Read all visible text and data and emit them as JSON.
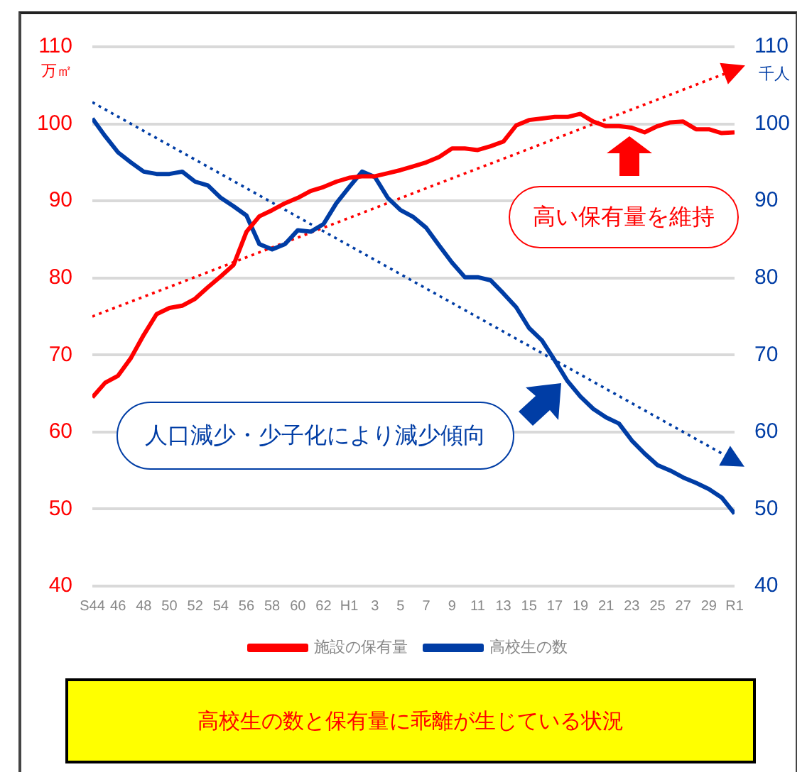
{
  "chart_data": {
    "type": "line",
    "categories": [
      "S44",
      null,
      "46",
      null,
      "48",
      null,
      "50",
      null,
      "52",
      null,
      "54",
      null,
      "56",
      null,
      "58",
      null,
      "60",
      null,
      "62",
      null,
      "H1",
      null,
      "3",
      null,
      "5",
      null,
      "7",
      null,
      "9",
      null,
      "11",
      null,
      "13",
      null,
      "15",
      null,
      "17",
      null,
      "19",
      null,
      "21",
      null,
      "23",
      null,
      "25",
      null,
      "27",
      null,
      "29",
      null,
      "R1"
    ],
    "series": [
      {
        "name": "施設の保有量",
        "color": "#ff0000",
        "axis": "y",
        "values": [
          64.5,
          66.4,
          67.3,
          69.6,
          72.6,
          75.3,
          76.1,
          76.4,
          77.3,
          78.8,
          80.2,
          81.7,
          86.0,
          88.0,
          88.8,
          89.7,
          90.4,
          91.3,
          91.8,
          92.5,
          93.0,
          93.2,
          93.2,
          93.6,
          94.0,
          94.5,
          95.0,
          95.7,
          96.8,
          96.8,
          96.6,
          97.1,
          97.7,
          99.8,
          100.5,
          100.7,
          100.9,
          100.9,
          101.3,
          100.3,
          99.7,
          99.7,
          99.5,
          98.9,
          99.7,
          100.2,
          100.3,
          99.3,
          99.3,
          98.8,
          98.9
        ]
      },
      {
        "name": "高校生の数",
        "color": "#003da5",
        "axis": "y2",
        "values": [
          100.7,
          98.4,
          96.3,
          95.0,
          93.8,
          93.5,
          93.5,
          93.8,
          92.5,
          92.0,
          90.4,
          89.3,
          88.1,
          84.4,
          83.7,
          84.4,
          86.2,
          86.0,
          87.0,
          89.7,
          91.8,
          93.8,
          93.1,
          90.4,
          88.8,
          87.9,
          86.5,
          84.2,
          82.0,
          80.1,
          80.1,
          79.7,
          78.0,
          76.2,
          73.5,
          71.9,
          69.3,
          66.6,
          64.6,
          63.0,
          61.9,
          61.1,
          58.9,
          57.2,
          55.7,
          55.0,
          54.1,
          53.4,
          52.6,
          51.5,
          49.4
        ]
      },
      {
        "type": "line",
        "color": "#ff0000",
        "axis": "y",
        "line_style": "dotted",
        "marker": "triangle",
        "x": [
          "S44",
          "R1"
        ],
        "values": [
          75.0,
          107.0
        ]
      },
      {
        "type": "line",
        "color": "#003da5",
        "axis": "y2",
        "line_style": "dotted",
        "marker": "triangle",
        "x": [
          "S44",
          "R1"
        ],
        "values": [
          102.8,
          56.3
        ]
      }
    ],
    "ylabel": "万㎡",
    "y2label": "千人",
    "ylim": [
      40,
      110
    ],
    "yticks": [
      40,
      50,
      60,
      70,
      80,
      90,
      100,
      110
    ],
    "y2lim": [
      40,
      110
    ],
    "y2ticks": [
      40,
      50,
      60,
      70,
      80,
      90,
      100,
      110
    ],
    "grid": "y",
    "legend": "bottom",
    "marker": "none",
    "line_style": "solid",
    "annotations": [
      "高い保有量を維持",
      "人口減少・少子化により減少傾向",
      "高校生の数と保有量に乖離が生じている状況"
    ]
  }
}
